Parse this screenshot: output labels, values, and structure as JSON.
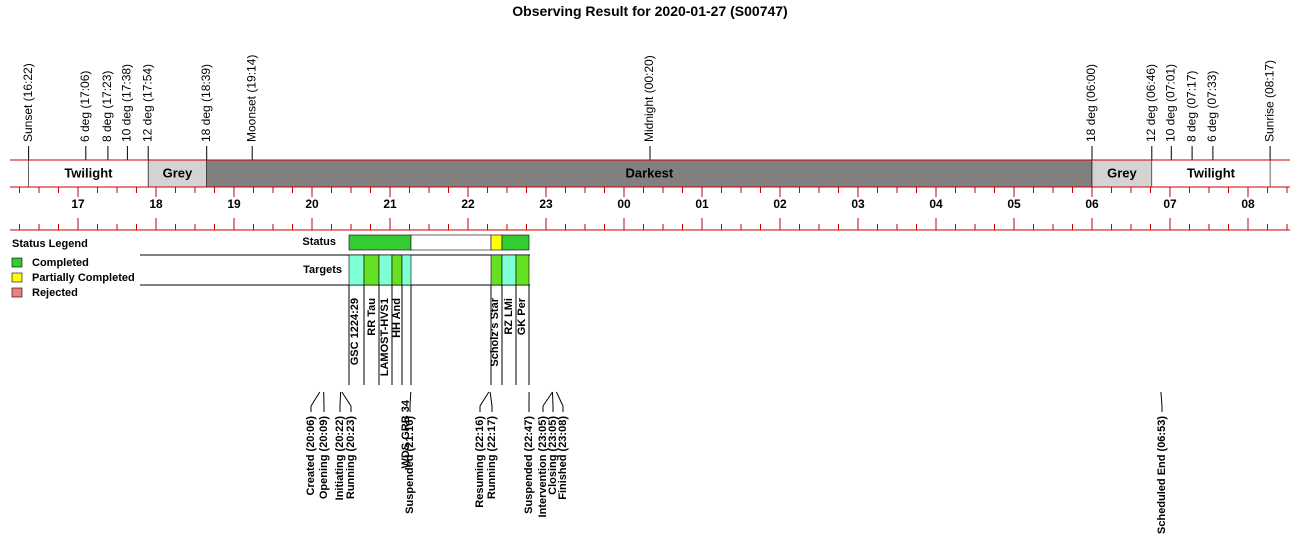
{
  "title": "Observing Result for 2020-01-27 (S00747)",
  "sky_events": [
    {
      "label": "Sunset (16:22)",
      "color": "#000000"
    },
    {
      "label": "6 deg (17:06)",
      "color": "#000000"
    },
    {
      "label": "8 deg (17:23)",
      "color": "#000000"
    },
    {
      "label": "10 deg (17:38)",
      "color": "#000000"
    },
    {
      "label": "12 deg (17:54)",
      "color": "#000000"
    },
    {
      "label": "18 deg (18:39)",
      "color": "#000000"
    },
    {
      "label": "Moonset (19:14)",
      "color": "#0000cc"
    },
    {
      "label": "Midnight (00:20)",
      "color": "#000000"
    },
    {
      "label": "18 deg (06:00)",
      "color": "#000000"
    },
    {
      "label": "12 deg (06:46)",
      "color": "#000000"
    },
    {
      "label": "10 deg (07:01)",
      "color": "#000000"
    },
    {
      "label": "8 deg (07:17)",
      "color": "#000000"
    },
    {
      "label": "6 deg (07:33)",
      "color": "#000000"
    },
    {
      "label": "Sunrise (08:17)",
      "color": "#000000"
    }
  ],
  "bands": [
    "Twilight",
    "Grey",
    "Darkest",
    "Grey",
    "Twilight"
  ],
  "hours": [
    "17",
    "18",
    "19",
    "20",
    "21",
    "22",
    "23",
    "00",
    "01",
    "02",
    "03",
    "04",
    "05",
    "06",
    "07",
    "08"
  ],
  "legend": {
    "title": "Status Legend",
    "items": [
      {
        "label": "Completed",
        "color": "#33cc33"
      },
      {
        "label": "Partially Completed",
        "color": "#ffff00"
      },
      {
        "label": "Rejected",
        "color": "#f08080"
      }
    ]
  },
  "rows": {
    "status": "Status",
    "targets": "Targets"
  },
  "targets": [
    "GSC 1224:29",
    "RR Tau",
    "LAMOST-HVS1",
    "HH And",
    "WDS GRB 34",
    "Scholz's Star",
    "RZ LMi",
    "GK Per"
  ],
  "log_events": [
    {
      "label": "Created (20:06)",
      "color": "#000000"
    },
    {
      "label": "Opening (20:09)",
      "color": "#000000"
    },
    {
      "label": "Initiating (20:22)",
      "color": "#000000"
    },
    {
      "label": "Running (20:23)",
      "color": "#000000"
    },
    {
      "label": "Suspended (21:16)",
      "color": "#ff8800"
    },
    {
      "label": "Resuming (22:16)",
      "color": "#000000"
    },
    {
      "label": "Running (22:17)",
      "color": "#000000"
    },
    {
      "label": "Suspended (22:47)",
      "color": "#ff8800"
    },
    {
      "label": "Intervention (23:05)",
      "color": "#cc0000"
    },
    {
      "label": "Closing (23:05)",
      "color": "#000000"
    },
    {
      "label": "Finished (23:08)",
      "color": "#000000"
    },
    {
      "label": "Scheduled End (06:53)",
      "color": "#000000"
    }
  ]
}
